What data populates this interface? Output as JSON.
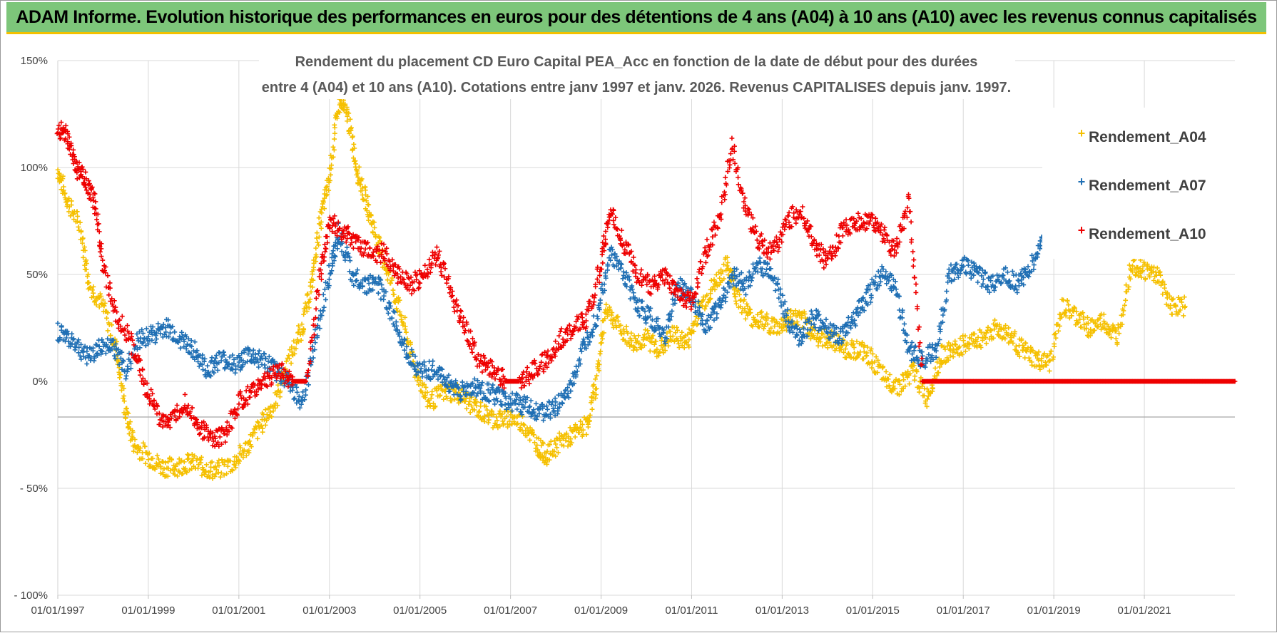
{
  "banner": {
    "title": "ADAM Informe. Evolution historique des performances en euros pour des détentions de 4 ans (A04) à 10 ans (A10) avec les revenus connus capitalisés"
  },
  "colors": {
    "a04": "#f5c000",
    "a07": "#1f6fb4",
    "a10": "#ee0000",
    "grid": "#d9d9d9",
    "banner": "#7dc67a"
  },
  "chart_data": {
    "type": "scatter",
    "title_lines": [
      "Rendement du placement CD Euro Capital PEA_Acc en fonction de la date de début pour des durées",
      "entre 4 (A04) et 10 ans (A10). Cotations entre janv 1997 et janv. 2026. Revenus CAPITALISES depuis janv. 1997."
    ],
    "xlabel": "",
    "ylabel": "",
    "x_range": [
      1997.0,
      2023.0
    ],
    "ylim": [
      -100,
      150
    ],
    "y_ticks": [
      150,
      100,
      50,
      0,
      -50,
      -100
    ],
    "y_tick_labels": [
      "150%",
      "100%",
      "50%",
      "0%",
      "- 50%",
      "- 100%"
    ],
    "x_ticks": [
      1997,
      1999,
      2001,
      2003,
      2005,
      2007,
      2009,
      2011,
      2013,
      2015,
      2017,
      2019,
      2021
    ],
    "x_tick_labels": [
      "01/01/1997",
      "01/01/1999",
      "01/01/2001",
      "01/01/2003",
      "01/01/2005",
      "01/01/2007",
      "01/01/2009",
      "01/01/2011",
      "01/01/2013",
      "01/01/2015",
      "01/01/2017",
      "01/01/2019",
      "01/01/2021"
    ],
    "legend_position": "right",
    "series": [
      {
        "name": "Rendement_A04",
        "color": "#f5c000",
        "x": [
          1997.0,
          1997.2,
          1997.5,
          1997.7,
          1998.0,
          1998.3,
          1998.5,
          1998.7,
          1999.0,
          1999.3,
          1999.6,
          1999.9,
          2000.2,
          2000.5,
          2000.9,
          2001.2,
          2001.5,
          2001.8,
          2002.1,
          2002.4,
          2002.6,
          2002.8,
          2003.0,
          2003.2,
          2003.4,
          2003.6,
          2003.8,
          2004.0,
          2004.3,
          2004.6,
          2004.9,
          2005.2,
          2005.5,
          2005.8,
          2006.1,
          2006.4,
          2006.7,
          2007.0,
          2007.3,
          2007.6,
          2007.8,
          2008.1,
          2008.4,
          2008.7,
          2008.9,
          2009.1,
          2009.4,
          2009.7,
          2010.0,
          2010.3,
          2010.6,
          2010.9,
          2011.2,
          2011.5,
          2011.8,
          2012.0,
          2012.3,
          2012.6,
          2012.9,
          2013.2,
          2013.5,
          2013.8,
          2014.1,
          2014.4,
          2014.7,
          2015.0,
          2015.3,
          2015.6,
          2015.9,
          2016.2,
          2016.5,
          2016.8,
          2017.1,
          2017.4,
          2017.7,
          2018.0,
          2018.3,
          2018.6,
          2018.9,
          2019.2,
          2019.5,
          2019.8,
          2020.1,
          2020.4,
          2020.7,
          2021.0,
          2021.3,
          2021.6,
          2021.9
        ],
        "values": [
          99,
          85,
          72,
          45,
          35,
          15,
          -15,
          -30,
          -35,
          -40,
          -40,
          -38,
          -40,
          -42,
          -38,
          -30,
          -20,
          -10,
          10,
          25,
          45,
          75,
          95,
          130,
          125,
          100,
          85,
          70,
          50,
          30,
          5,
          -10,
          -5,
          -5,
          -10,
          -15,
          -18,
          -17,
          -20,
          -30,
          -35,
          -28,
          -25,
          -20,
          0,
          35,
          25,
          18,
          20,
          15,
          22,
          18,
          35,
          45,
          55,
          40,
          30,
          28,
          25,
          30,
          28,
          20,
          20,
          15,
          15,
          10,
          0,
          -2,
          5,
          -8,
          12,
          15,
          18,
          20,
          25,
          22,
          15,
          10,
          8,
          35,
          30,
          25,
          28,
          20,
          55,
          52,
          50,
          35,
          35
        ]
      },
      {
        "name": "Rendement_A07",
        "color": "#1f6fb4",
        "x": [
          1997.0,
          1997.3,
          1997.6,
          1997.9,
          1998.2,
          1998.5,
          1998.8,
          1999.1,
          1999.4,
          1999.7,
          2000.0,
          2000.3,
          2000.6,
          2000.9,
          2001.2,
          2001.5,
          2001.8,
          2002.1,
          2002.4,
          2002.7,
          2003.0,
          2003.2,
          2003.5,
          2003.8,
          2004.1,
          2004.4,
          2004.7,
          2005.0,
          2005.3,
          2005.6,
          2005.9,
          2006.2,
          2006.5,
          2006.8,
          2007.1,
          2007.4,
          2007.7,
          2008.0,
          2008.3,
          2008.6,
          2008.9,
          2009.2,
          2009.5,
          2009.8,
          2010.1,
          2010.4,
          2010.7,
          2011.0,
          2011.3,
          2011.6,
          2011.9,
          2012.2,
          2012.5,
          2012.8,
          2013.1,
          2013.4,
          2013.7,
          2014.0,
          2014.3,
          2014.6,
          2014.9,
          2015.2,
          2015.5,
          2015.8,
          2016.1,
          2016.4,
          2016.7,
          2017.0,
          2017.3,
          2017.6,
          2017.9,
          2018.2,
          2018.5,
          2018.8
        ],
        "values": [
          23,
          20,
          12,
          15,
          18,
          5,
          20,
          22,
          25,
          20,
          15,
          5,
          10,
          8,
          12,
          10,
          5,
          0,
          -10,
          20,
          50,
          70,
          50,
          45,
          45,
          30,
          15,
          5,
          5,
          0,
          -5,
          -3,
          -5,
          -8,
          -10,
          -12,
          -15,
          -12,
          -5,
          15,
          30,
          60,
          50,
          35,
          30,
          20,
          45,
          40,
          25,
          35,
          50,
          45,
          55,
          50,
          30,
          20,
          30,
          25,
          20,
          30,
          40,
          50,
          45,
          15,
          10,
          15,
          50,
          55,
          50,
          45,
          50,
          45,
          55,
          65
        ]
      },
      {
        "name": "Rendement_A10",
        "color": "#ee0000",
        "x": [
          1997.0,
          1997.2,
          1997.4,
          1997.6,
          1997.8,
          1998.0,
          1998.3,
          1998.6,
          1998.9,
          1999.2,
          1999.5,
          1999.8,
          2000.1,
          2000.4,
          2000.7,
          2001.0,
          2001.3,
          2001.6,
          2001.9,
          2002.2,
          2002.5,
          2002.8,
          2003.0,
          2003.3,
          2003.6,
          2003.9,
          2004.2,
          2004.5,
          2004.8,
          2005.1,
          2005.4,
          2005.7,
          2006.0,
          2006.3,
          2006.6,
          2006.9,
          2007.2,
          2007.5,
          2007.8,
          2008.1,
          2008.4,
          2008.7,
          2009.0,
          2009.2,
          2009.5,
          2009.8,
          2010.1,
          2010.4,
          2010.7,
          2011.0,
          2011.3,
          2011.6,
          2011.9,
          2012.2,
          2012.5,
          2012.8,
          2013.1,
          2013.4,
          2013.7,
          2014.0,
          2014.3,
          2014.6,
          2014.9,
          2015.2,
          2015.5,
          2015.8,
          2016.1,
          2016.4,
          2016.7,
          2017.0,
          2017.3,
          2017.6,
          2017.9,
          2018.2,
          2018.5,
          2018.8,
          2019.1,
          2019.4,
          2019.7,
          2020.0,
          2020.3,
          2020.6,
          2020.9,
          2021.2,
          2021.5,
          2021.8,
          2022.1,
          2022.4,
          2022.7,
          2023.0
        ],
        "values": [
          118,
          115,
          100,
          95,
          85,
          55,
          30,
          20,
          0,
          -15,
          -20,
          -10,
          -20,
          -28,
          -25,
          -10,
          -5,
          0,
          5,
          0,
          0,
          50,
          75,
          70,
          65,
          60,
          60,
          50,
          45,
          50,
          60,
          40,
          25,
          10,
          5,
          0,
          0,
          5,
          10,
          20,
          25,
          30,
          55,
          80,
          65,
          50,
          45,
          50,
          40,
          38,
          60,
          75,
          110,
          80,
          65,
          60,
          75,
          80,
          65,
          55,
          70,
          75,
          75,
          70,
          60,
          85,
          0,
          0,
          0,
          0,
          0,
          0,
          0,
          0,
          0,
          0,
          0,
          0,
          0,
          0,
          0,
          0,
          0,
          0,
          0,
          0,
          0,
          0,
          0,
          0
        ]
      }
    ]
  }
}
